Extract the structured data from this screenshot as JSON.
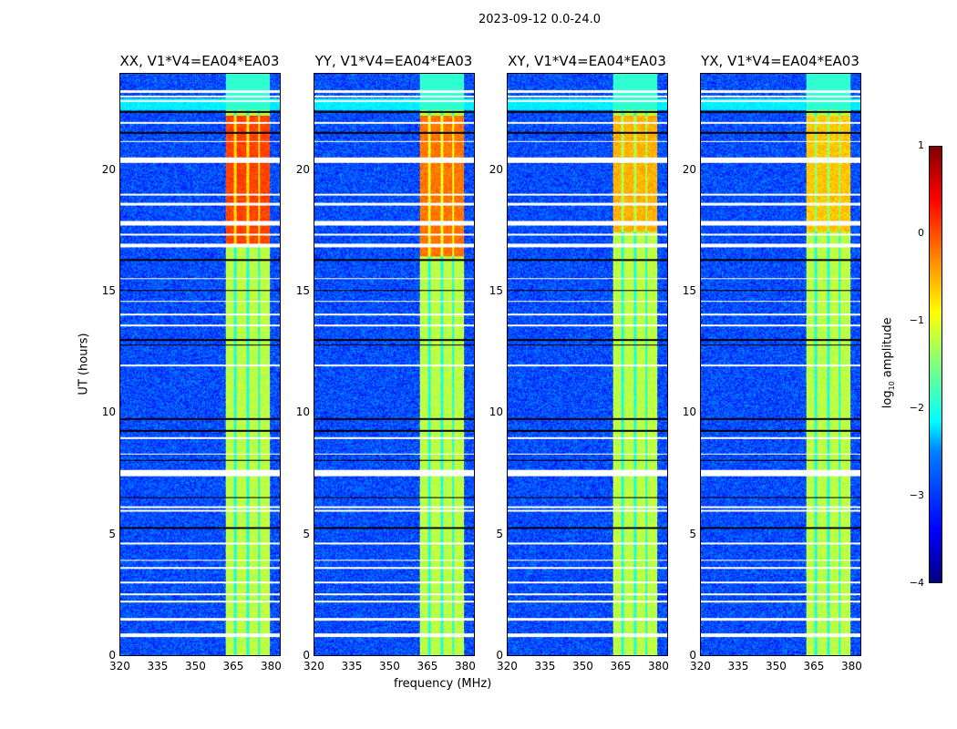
{
  "chart_data": {
    "type": "heatmap",
    "suptitle": "2023-09-12 0.0-24.0",
    "xlabel": "frequency (MHz)",
    "ylabel": "UT (hours)",
    "xlim": [
      320,
      384
    ],
    "ylim": [
      0,
      24
    ],
    "xticks": [
      "320",
      "335",
      "350",
      "365",
      "380"
    ],
    "xtick_values": [
      320,
      335,
      350,
      365,
      380
    ],
    "yticks": [
      "0",
      "5",
      "10",
      "15",
      "20"
    ],
    "ytick_values": [
      0,
      5,
      10,
      15,
      20
    ],
    "panels": [
      {
        "title": "XX, V1*V4=EA04*EA03",
        "strong_hours": [
          17,
          22.3
        ],
        "strong_level": 0.05
      },
      {
        "title": "YY, V1*V4=EA04*EA03",
        "strong_hours": [
          16.5,
          22.3
        ],
        "strong_level": -0.2
      },
      {
        "title": "XY, V1*V4=EA04*EA03",
        "strong_hours": [
          17.5,
          22.3
        ],
        "strong_level": -0.5
      },
      {
        "title": "YX, V1*V4=EA04*EA03",
        "strong_hours": [
          17.5,
          22.3
        ],
        "strong_level": -0.6
      }
    ],
    "signal_band_mhz": [
      362,
      380
    ],
    "band_gaps_mhz": [
      366,
      371,
      375.5
    ],
    "background_level": -3.0,
    "band_level": -1.2,
    "flagged_white_hours": [
      [
        23.25,
        23.35
      ],
      [
        23.05,
        23.12
      ],
      [
        22.85,
        22.92
      ],
      [
        21.95,
        22.02
      ],
      [
        21.2,
        21.25
      ],
      [
        20.35,
        20.55
      ],
      [
        19.0,
        19.06
      ],
      [
        18.6,
        18.68
      ],
      [
        17.75,
        17.95
      ],
      [
        17.35,
        17.42
      ],
      [
        16.85,
        17.0
      ],
      [
        15.55,
        15.6
      ],
      [
        14.6,
        14.65
      ],
      [
        14.05,
        14.12
      ],
      [
        13.6,
        13.65
      ],
      [
        11.95,
        12.0
      ],
      [
        8.95,
        9.0
      ],
      [
        8.3,
        8.35
      ],
      [
        7.4,
        7.65
      ],
      [
        6.1,
        6.15
      ],
      [
        5.95,
        6.0
      ],
      [
        4.6,
        4.65
      ],
      [
        3.9,
        3.95
      ],
      [
        3.6,
        3.65
      ],
      [
        3.0,
        3.05
      ],
      [
        2.5,
        2.55
      ],
      [
        2.2,
        2.25
      ],
      [
        1.45,
        1.55
      ],
      [
        0.78,
        0.9
      ]
    ],
    "flagged_black_hours": [
      [
        22.4,
        22.48
      ],
      [
        21.55,
        21.6
      ],
      [
        16.3,
        16.36
      ],
      [
        15.05,
        15.1
      ],
      [
        13.0,
        13.05
      ],
      [
        12.8,
        12.86
      ],
      [
        9.75,
        9.8
      ],
      [
        9.25,
        9.3
      ],
      [
        8.05,
        8.1
      ],
      [
        6.5,
        6.55
      ],
      [
        5.25,
        5.3
      ]
    ],
    "colorbar": {
      "label_prefix": "log",
      "label_sub": "10",
      "label_suffix": " amplitude",
      "range": [
        -4,
        1
      ],
      "ticks": [
        "1",
        "0",
        "−1",
        "−2",
        "−3",
        "−4"
      ],
      "tick_values": [
        1,
        0,
        -1,
        -2,
        -3,
        -4
      ]
    }
  }
}
